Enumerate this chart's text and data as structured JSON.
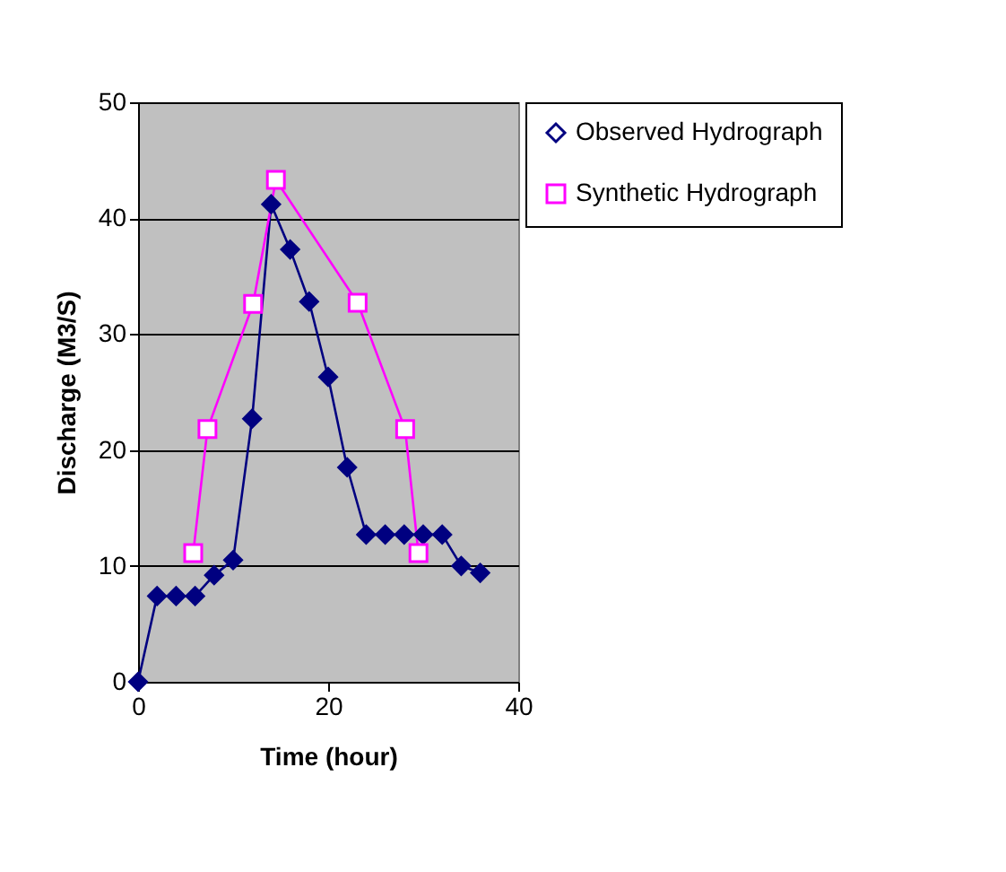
{
  "chart_data": {
    "type": "line",
    "xlabel": "Time (hour)",
    "ylabel": "Discharge (M3/S)",
    "xlim": [
      0,
      40
    ],
    "xticks": [
      0,
      20,
      40
    ],
    "ylim": [
      0,
      50
    ],
    "yticks": [
      0,
      10,
      20,
      30,
      40,
      50
    ],
    "grid": "y",
    "legend": "right",
    "series": [
      {
        "name": "Observed Hydrograph",
        "color": "#000080",
        "marker": "diamond",
        "x": [
          0,
          2,
          4,
          6,
          8,
          10,
          12,
          14,
          16,
          18,
          20,
          22,
          24,
          26,
          28,
          30,
          32,
          34,
          36
        ],
        "values": [
          0,
          7.4,
          7.4,
          7.4,
          9.2,
          10.5,
          22.7,
          41.2,
          37.3,
          32.8,
          26.3,
          18.5,
          12.7,
          12.7,
          12.7,
          12.7,
          12.7,
          10,
          9.4
        ]
      },
      {
        "name": "Synthetic Hydrograph",
        "color": "#ff00ff",
        "marker": "square",
        "x": [
          5.8,
          7.3,
          12.1,
          14.5,
          23.1,
          28.1,
          29.5
        ],
        "values": [
          11.1,
          21.8,
          32.6,
          43.3,
          32.7,
          21.8,
          11.1
        ]
      }
    ]
  }
}
